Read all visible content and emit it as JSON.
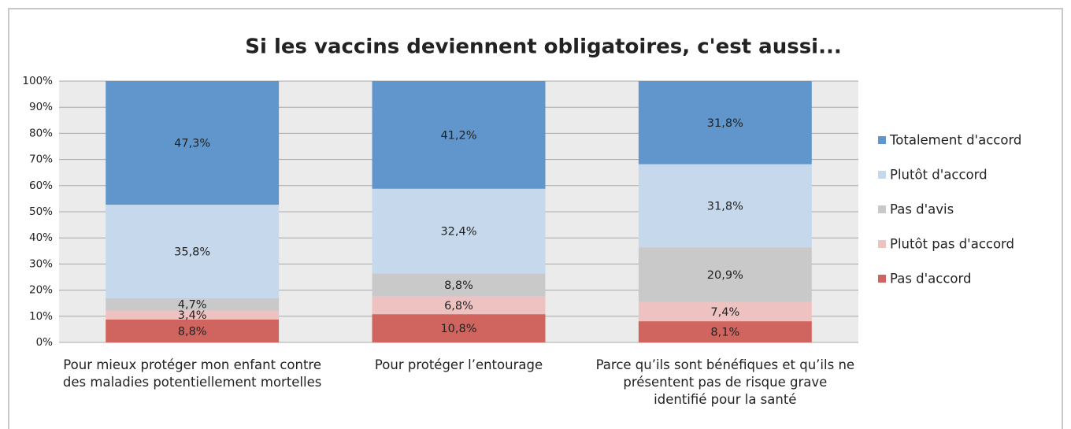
{
  "chart_data": {
    "type": "stacked_bar",
    "title": "Si les vaccins deviennent obligatoires, c'est aussi...",
    "categories": [
      "Pour mieux protéger mon enfant contre des maladies potentiellement mortelles",
      "Pour protéger l’entourage",
      "Parce qu’ils sont bénéfiques et qu’ils ne présentent pas de risque grave identifié pour la santé"
    ],
    "series": [
      {
        "name": "Totalement d'accord",
        "color": "#6096cb",
        "values": [
          47.3,
          41.2,
          31.8
        ],
        "value_labels": [
          "47,3%",
          "41,2%",
          "31,8%"
        ]
      },
      {
        "name": "Plutôt d'accord",
        "color": "#c5d8ec",
        "values": [
          35.8,
          32.4,
          31.8
        ],
        "value_labels": [
          "35,8%",
          "32,4%",
          "31,8%"
        ]
      },
      {
        "name": "Pas d'avis",
        "color": "#c9c9c9",
        "values": [
          4.7,
          8.8,
          20.9
        ],
        "value_labels": [
          "4,7%",
          "8,8%",
          "20,9%"
        ]
      },
      {
        "name": "Plutôt pas d'accord",
        "color": "#efc2c2",
        "values": [
          3.4,
          6.8,
          7.4
        ],
        "value_labels": [
          "3,4%",
          "6,8%",
          "7,4%"
        ]
      },
      {
        "name": "Pas d'accord",
        "color": "#d0645e",
        "values": [
          8.8,
          10.8,
          8.1
        ],
        "value_labels": [
          "8,8%",
          "10,8%",
          "8,1%"
        ]
      }
    ],
    "ylim": [
      0,
      100
    ],
    "yticks": [
      {
        "value": 0,
        "label": "0%"
      },
      {
        "value": 10,
        "label": "10%"
      },
      {
        "value": 20,
        "label": "20%"
      },
      {
        "value": 30,
        "label": "30%"
      },
      {
        "value": 40,
        "label": "40%"
      },
      {
        "value": 50,
        "label": "50%"
      },
      {
        "value": 60,
        "label": "60%"
      },
      {
        "value": 70,
        "label": "70%"
      },
      {
        "value": 80,
        "label": "80%"
      },
      {
        "value": 90,
        "label": "90%"
      },
      {
        "value": 100,
        "label": "100%"
      }
    ],
    "grid": true,
    "legend": "right"
  }
}
